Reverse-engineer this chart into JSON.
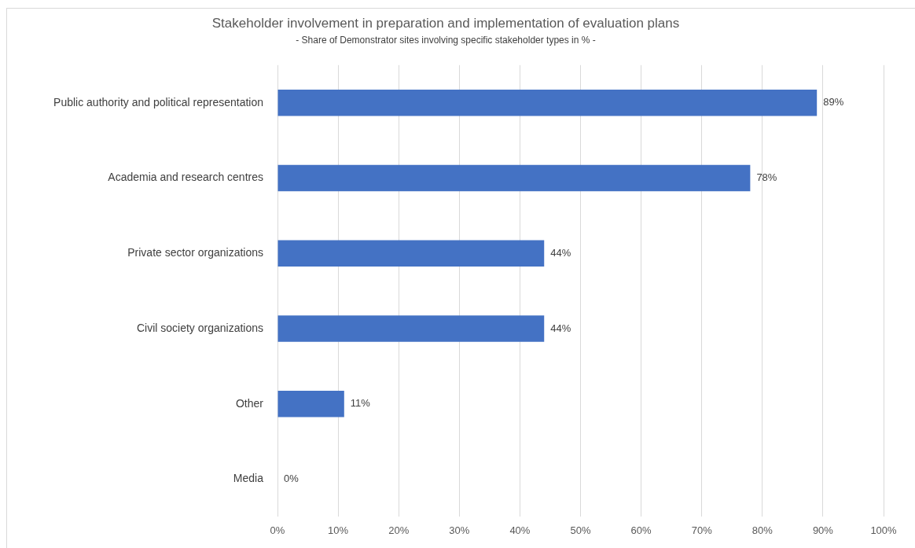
{
  "chart_data": {
    "type": "bar",
    "orientation": "horizontal",
    "title": "Stakeholder involvement in preparation and implementation of evaluation plans",
    "subtitle": "- Share of Demonstrator sites involving specific stakeholder types in % -",
    "categories": [
      "Public authority and political representation",
      "Academia and research centres",
      "Private sector organizations",
      "Civil society organizations",
      "Other",
      "Media"
    ],
    "values": [
      89,
      78,
      44,
      44,
      11,
      0
    ],
    "value_labels": [
      "89%",
      "78%",
      "44%",
      "44%",
      "11%",
      "0%"
    ],
    "color": "#4472c4",
    "xlim": [
      0,
      100
    ],
    "xticks": [
      {
        "value": 0,
        "label": "0%"
      },
      {
        "value": 10,
        "label": "10%"
      },
      {
        "value": 20,
        "label": "20%"
      },
      {
        "value": 30,
        "label": "30%"
      },
      {
        "value": 40,
        "label": "40%"
      },
      {
        "value": 50,
        "label": "50%"
      },
      {
        "value": 60,
        "label": "60%"
      },
      {
        "value": 70,
        "label": "70%"
      },
      {
        "value": 80,
        "label": "80%"
      },
      {
        "value": 90,
        "label": "90%"
      },
      {
        "value": 100,
        "label": "100%"
      }
    ],
    "grid": "x"
  }
}
